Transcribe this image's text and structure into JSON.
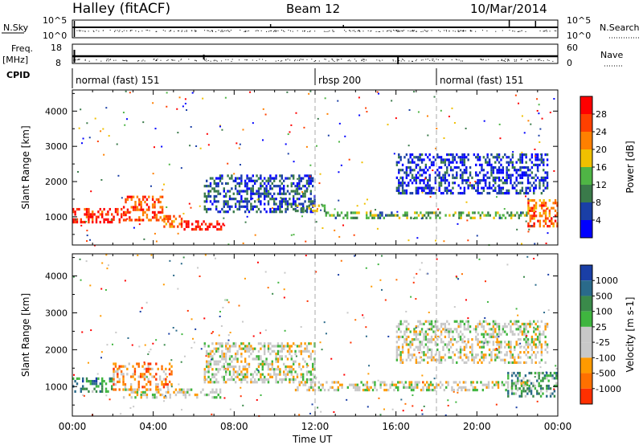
{
  "header": {
    "title": "Halley (fitACF)",
    "beam": "Beam 12",
    "date": "10/Mar/2014"
  },
  "status_panels": {
    "nsky_label": "N.Sky",
    "nsky_ticks": [
      "10^5",
      "10^0"
    ],
    "nsearch_label": "N.Search",
    "nsearch_ticks": [
      "10^5",
      "10^0"
    ],
    "freq_label": "Freq.",
    "freq_unit": "[MHz]",
    "freq_ticks": [
      "18",
      "8"
    ],
    "nave_label": "Nave",
    "nave_ticks": [
      "60",
      "0"
    ],
    "cpid_label": "CPID",
    "cpid_segments": [
      {
        "label": "normal (fast) 151",
        "start_hr": 0,
        "end_hr": 12
      },
      {
        "label": "rbsp 200",
        "start_hr": 12,
        "end_hr": 18
      },
      {
        "label": "normal (fast) 151",
        "start_hr": 18,
        "end_hr": 24
      }
    ]
  },
  "colors": {
    "power": [
      "#0000ff",
      "#1a3fa6",
      "#3a7a4a",
      "#4fb545",
      "#f0c000",
      "#ff8000",
      "#ff4000",
      "#ff0000"
    ],
    "velocity": [
      "#1a3fa6",
      "#2a6a8a",
      "#3a8a4a",
      "#3fb53f",
      "#c8c8c8",
      "#c8c8c8",
      "#ff9a00",
      "#ff7000",
      "#ff3000",
      "#ff0000"
    ]
  },
  "chart_data": [
    {
      "type": "heatmap",
      "name": "power",
      "ylabel": "Slant Range [km]",
      "yticks": [
        1000,
        2000,
        3000,
        4000
      ],
      "ylim": [
        200,
        4600
      ],
      "xlim": [
        0,
        24
      ],
      "colorbar_label": "Power [dB]",
      "colorbar_ticks": [
        "4",
        "8",
        "12",
        "16",
        "20",
        "24",
        "28"
      ],
      "colorbar_range": [
        0,
        32
      ],
      "scatter_bands": [
        {
          "x0": 0.0,
          "x1": 2.5,
          "y0": 800,
          "y1": 1250,
          "level": 0.9
        },
        {
          "x0": 2.5,
          "x1": 4.5,
          "y0": 850,
          "y1": 1600,
          "level": 0.8
        },
        {
          "x0": 4.5,
          "x1": 5.5,
          "y0": 700,
          "y1": 1050,
          "level": 0.75
        },
        {
          "x0": 5.5,
          "x1": 7.5,
          "y0": 600,
          "y1": 900,
          "level": 0.95
        },
        {
          "x0": 6.5,
          "x1": 12.0,
          "y0": 1100,
          "y1": 2200,
          "level": 0.2
        },
        {
          "x0": 11.0,
          "x1": 12.5,
          "y0": 1100,
          "y1": 1350,
          "level": 0.45
        },
        {
          "x0": 12.5,
          "x1": 22.5,
          "y0": 900,
          "y1": 1150,
          "level": 0.4
        },
        {
          "x0": 16.0,
          "x1": 23.5,
          "y0": 1600,
          "y1": 2800,
          "level": 0.15
        },
        {
          "x0": 22.5,
          "x1": 24.0,
          "y0": 700,
          "y1": 1500,
          "level": 0.75
        }
      ]
    },
    {
      "type": "heatmap",
      "name": "velocity",
      "ylabel": "Slant Range [km]",
      "yticks": [
        1000,
        2000,
        3000,
        4000
      ],
      "ylim": [
        200,
        4600
      ],
      "xlim": [
        0,
        24
      ],
      "xlabel": "Time UT",
      "xticks": [
        "00:00",
        "04:00",
        "08:00",
        "12:00",
        "16:00",
        "20:00",
        "00:00"
      ],
      "colorbar_label": "Velocity [m s-1]",
      "colorbar_ticks": [
        "1000",
        "500",
        "100",
        "25",
        "-25",
        "-100",
        "-500",
        "-1000"
      ],
      "scatter_bands": [
        {
          "x0": 0.0,
          "x1": 2.0,
          "y0": 800,
          "y1": 1250,
          "level": 0.25
        },
        {
          "x0": 2.0,
          "x1": 5.0,
          "y0": 900,
          "y1": 1650,
          "level": 0.7
        },
        {
          "x0": 2.5,
          "x1": 7.5,
          "y0": 650,
          "y1": 950,
          "level": 0.5
        },
        {
          "x0": 6.5,
          "x1": 12.0,
          "y0": 1100,
          "y1": 2200,
          "level": 0.5
        },
        {
          "x0": 11.0,
          "x1": 22.5,
          "y0": 900,
          "y1": 1150,
          "level": 0.5
        },
        {
          "x0": 16.0,
          "x1": 23.5,
          "y0": 1600,
          "y1": 2800,
          "level": 0.5
        },
        {
          "x0": 21.5,
          "x1": 24.0,
          "y0": 700,
          "y1": 1400,
          "level": 0.3
        }
      ]
    }
  ]
}
